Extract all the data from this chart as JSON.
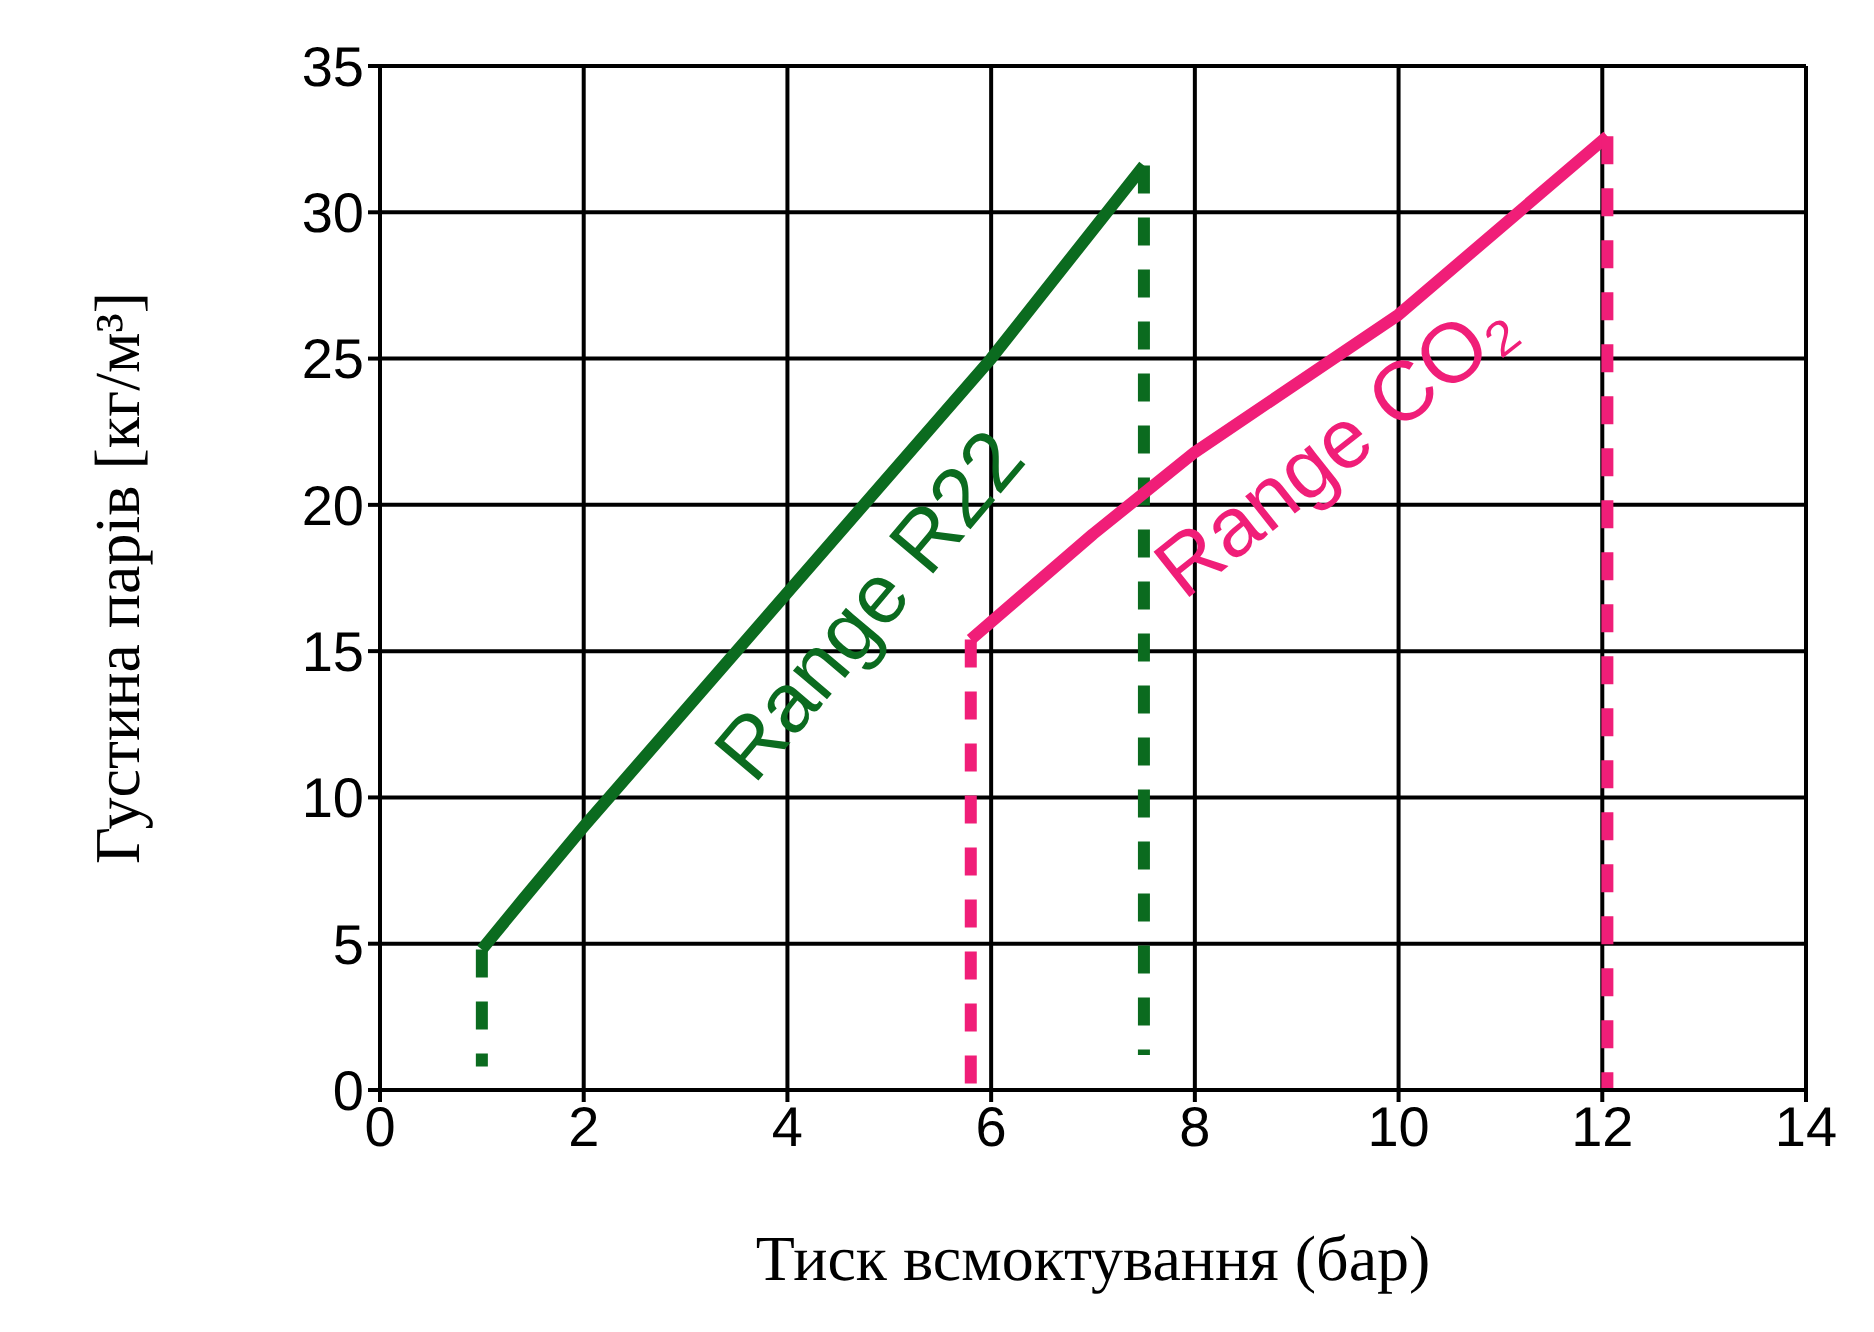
{
  "chart_data": {
    "type": "line",
    "xlabel": "Тиск всмоктування (бар)",
    "ylabel": "Густина парів [кг/м³]",
    "xlim": [
      0,
      14
    ],
    "xticks": [
      0,
      2,
      4,
      6,
      8,
      10,
      12,
      14
    ],
    "ylim": [
      0,
      35
    ],
    "yticks": [
      0,
      5,
      10,
      15,
      20,
      25,
      30,
      35
    ],
    "grid": true,
    "legend": false,
    "marker": "none",
    "series": [
      {
        "name": "Range R22",
        "color": "#0b6b1f",
        "line_style": "solid",
        "x": [
          1,
          1.4,
          2,
          4,
          6,
          7.5
        ],
        "values": [
          4.8,
          6.5,
          9,
          17,
          25,
          31.6
        ]
      },
      {
        "color": "#0b6b1f",
        "line_style": "dashed",
        "x": [
          1,
          1
        ],
        "values": [
          4.8,
          0.8
        ]
      },
      {
        "color": "#0b6b1f",
        "line_style": "dashed",
        "x": [
          7.5,
          7.5
        ],
        "values": [
          31.6,
          1.2
        ]
      },
      {
        "name": "Range CO₂",
        "color": "#f01e78",
        "line_style": "solid",
        "x": [
          5.8,
          7,
          8,
          10,
          12.05
        ],
        "values": [
          15.4,
          19,
          21.8,
          26.5,
          32.6
        ]
      },
      {
        "color": "#f01e78",
        "line_style": "dashed",
        "x": [
          5.8,
          5.8
        ],
        "values": [
          15.4,
          0
        ]
      },
      {
        "color": "#f01e78",
        "line_style": "dashed",
        "x": [
          12.05,
          12.05
        ],
        "values": [
          32.6,
          0
        ]
      }
    ]
  }
}
